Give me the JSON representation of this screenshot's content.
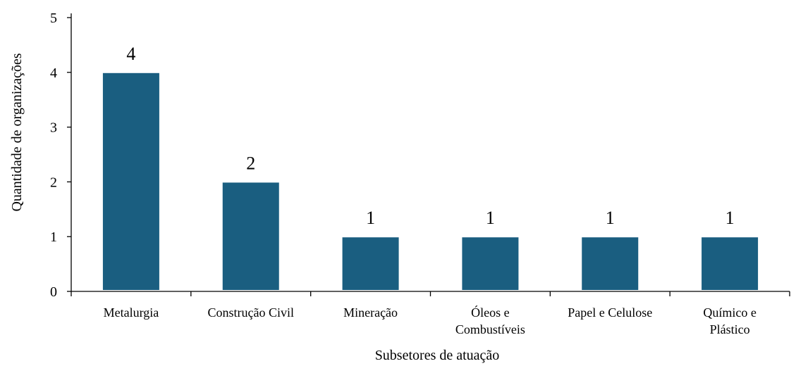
{
  "chart_data": {
    "type": "bar",
    "categories": [
      [
        "Metalurgia"
      ],
      [
        "Construção Civil"
      ],
      [
        "Mineração"
      ],
      [
        "Óleos e",
        "Combustíveis"
      ],
      [
        "Papel e Celulose"
      ],
      [
        "Químico e",
        "Plástico"
      ]
    ],
    "values": [
      4,
      2,
      1,
      1,
      1,
      1
    ],
    "data_labels": [
      "4",
      "2",
      "1",
      "1",
      "1",
      "1"
    ],
    "xlabel": "Subsetores de atuação",
    "ylabel": "Quantidade de organizações",
    "ylim": [
      0,
      5
    ],
    "yticks": [
      "0",
      "1",
      "2",
      "3",
      "4",
      "5"
    ],
    "grid": false,
    "bar_color": "#1a5e80"
  }
}
